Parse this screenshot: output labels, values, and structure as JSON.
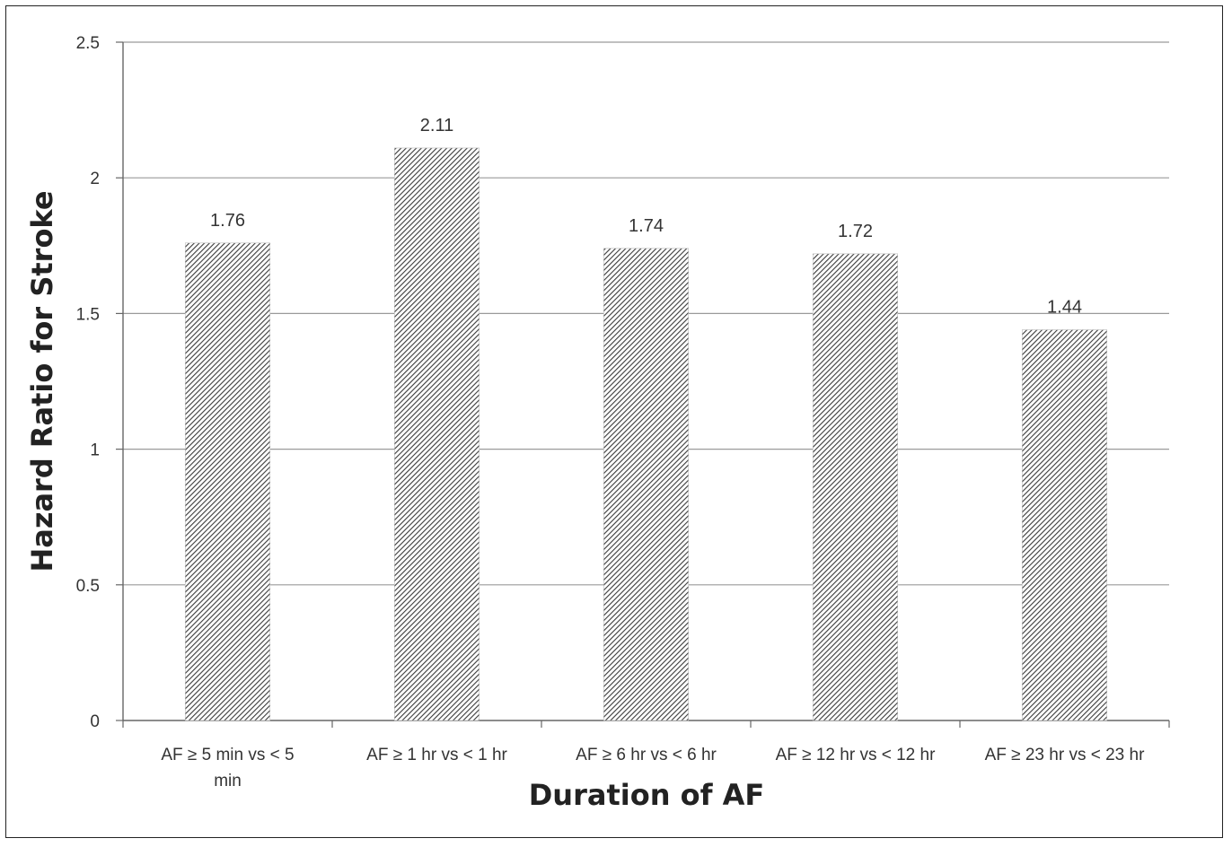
{
  "chart_data": {
    "type": "bar",
    "title": "",
    "xlabel": "Duration of AF",
    "ylabel": "Hazard Ratio for Stroke",
    "ylim": [
      0,
      2.5
    ],
    "yticks": [
      0,
      0.5,
      1,
      1.5,
      2,
      2.5
    ],
    "ytick_labels": [
      "0",
      "0.5",
      "1",
      "1.5",
      "2",
      "2.5"
    ],
    "grid": true,
    "legend": "none",
    "categories": [
      [
        "AF ≥ 5 min vs < 5",
        "min"
      ],
      [
        "AF ≥ 1 hr vs < 1 hr"
      ],
      [
        "AF ≥ 6 hr vs < 6 hr"
      ],
      [
        "AF ≥ 12 hr vs < 12 hr"
      ],
      [
        "AF ≥ 23 hr vs < 23 hr"
      ]
    ],
    "values": [
      1.76,
      2.11,
      1.74,
      1.72,
      1.44
    ],
    "data_labels": [
      "1.76",
      "2.11",
      "1.74",
      "1.72",
      "1.44"
    ],
    "bar_color": "#444444",
    "grid_color": "#9a9a9a"
  }
}
